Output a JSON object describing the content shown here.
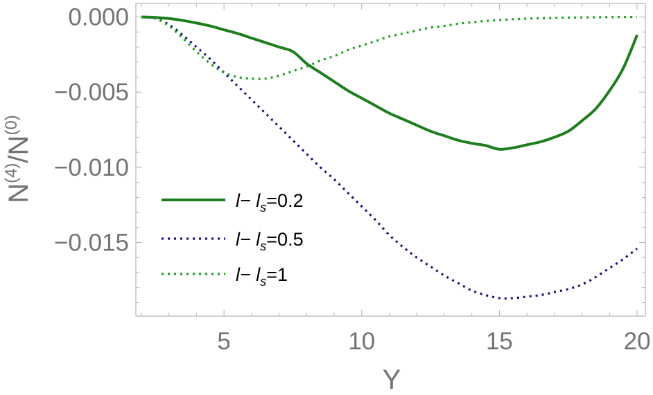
{
  "chart_data": {
    "type": "line",
    "xlabel": "Y",
    "ylabel": {
      "base1": "N",
      "sup1": "(4)",
      "sep": "/",
      "base2": "N",
      "sup2": "(0)"
    },
    "xlim": [
      1.8,
      20.3
    ],
    "ylim": [
      -0.0199,
      0.0009
    ],
    "x_ticks": [
      5,
      10,
      15,
      20
    ],
    "x_tick_labels": [
      "5",
      "10",
      "15",
      "20"
    ],
    "y_ticks": [
      0.0,
      -0.005,
      -0.01,
      -0.015
    ],
    "y_tick_labels": [
      "0.000",
      "−0.005",
      "−0.010",
      "−0.015"
    ],
    "grid": false,
    "legend_position": "bottom-left",
    "series": [
      {
        "label": {
          "a": "l− l",
          "sub": "s",
          "b": "=0.2"
        },
        "style": "solid",
        "color": "#1e7d1e",
        "x": [
          2,
          2.5,
          3,
          3.5,
          4,
          4.5,
          5,
          5.5,
          6,
          6.5,
          7,
          7.5,
          8,
          8.5,
          9,
          9.5,
          10,
          10.5,
          11,
          11.5,
          12,
          12.5,
          13,
          13.5,
          14,
          14.5,
          15,
          15.5,
          16,
          16.5,
          17,
          17.5,
          18,
          18.5,
          19,
          19.5,
          20
        ],
        "y": [
          0.0,
          -3e-05,
          -0.0001,
          -0.00023,
          -0.0004,
          -0.0006,
          -0.00085,
          -0.0011,
          -0.0014,
          -0.0017,
          -0.002,
          -0.0023,
          -0.0031,
          -0.0037,
          -0.0043,
          -0.0049,
          -0.0054,
          -0.0059,
          -0.0064,
          -0.0068,
          -0.0072,
          -0.0076,
          -0.0079,
          -0.0082,
          -0.0084,
          -0.00855,
          -0.0088,
          -0.0087,
          -0.0085,
          -0.0083,
          -0.008,
          -0.0076,
          -0.0069,
          -0.0061,
          -0.0049,
          -0.0034,
          -0.0012
        ]
      },
      {
        "label": {
          "a": "l− l",
          "sub": "s",
          "b": "=0.5"
        },
        "style": "dotted",
        "color": "#14147a",
        "x": [
          2,
          2.5,
          3,
          3.5,
          4,
          4.5,
          5,
          5.5,
          6,
          6.5,
          7,
          7.5,
          8,
          8.5,
          9,
          9.5,
          10,
          10.5,
          11,
          11.5,
          12,
          12.5,
          13,
          13.5,
          14,
          14.5,
          15,
          15.5,
          16,
          16.5,
          17,
          17.5,
          18,
          18.5,
          19,
          19.5,
          20
        ],
        "y": [
          0.0,
          -0.0001,
          -0.0005,
          -0.0012,
          -0.002,
          -0.0028,
          -0.0037,
          -0.0046,
          -0.0055,
          -0.0064,
          -0.0073,
          -0.0082,
          -0.0091,
          -0.01,
          -0.0108,
          -0.0117,
          -0.0126,
          -0.0135,
          -0.0145,
          -0.0153,
          -0.016,
          -0.0166,
          -0.0172,
          -0.0177,
          -0.0182,
          -0.0185,
          -0.0187,
          -0.0187,
          -0.0186,
          -0.0185,
          -0.0183,
          -0.0181,
          -0.0178,
          -0.0173,
          -0.0167,
          -0.0161,
          -0.0154
        ]
      },
      {
        "label": {
          "a": "l− l",
          "sub": "s",
          "b": "=1"
        },
        "style": "dotted",
        "color": "#1e9e1e",
        "x": [
          2,
          2.5,
          3,
          3.5,
          4,
          4.5,
          5,
          5.5,
          6,
          6.5,
          7,
          7.5,
          8,
          8.5,
          9,
          9.5,
          10,
          10.5,
          11,
          11.5,
          12,
          12.5,
          13,
          13.5,
          14,
          14.5,
          15,
          15.5,
          16,
          16.5,
          17,
          17.5,
          18,
          18.5,
          19,
          19.5,
          20
        ],
        "y": [
          0.0,
          -0.0001,
          -0.0006,
          -0.0014,
          -0.0023,
          -0.0031,
          -0.0037,
          -0.004,
          -0.0041,
          -0.0041,
          -0.0039,
          -0.0036,
          -0.0033,
          -0.0029,
          -0.0026,
          -0.0022,
          -0.0019,
          -0.0016,
          -0.0013,
          -0.0011,
          -0.0009,
          -0.0007,
          -0.0006,
          -0.00045,
          -0.00035,
          -0.00027,
          -0.0002,
          -0.00015,
          -0.00011,
          -8e-05,
          -6e-05,
          -4e-05,
          -3e-05,
          -2e-05,
          -1e-05,
          -5e-06,
          0.0
        ]
      }
    ]
  }
}
